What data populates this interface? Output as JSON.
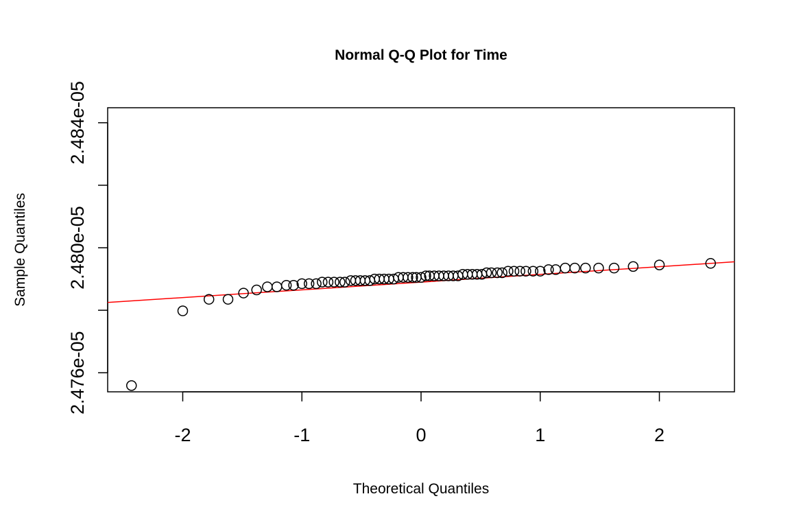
{
  "chart_data": {
    "type": "scatter",
    "title": "Normal Q-Q Plot for Time",
    "xlabel": "Theoretical Quantiles",
    "ylabel": "Sample Quantiles",
    "xlim": [
      -2.63,
      2.63
    ],
    "ylim": [
      2.47539e-05,
      2.48448e-05
    ],
    "x_ticks": [
      -2,
      -1,
      0,
      1,
      2
    ],
    "x_tick_labels": [
      "-2",
      "-1",
      "0",
      "1",
      "2"
    ],
    "y_ticks": [
      2.476e-05,
      2.478e-05,
      2.48e-05,
      2.482e-05,
      2.484e-05
    ],
    "y_tick_labels": [
      "2.476e-05",
      "",
      "2.480e-05",
      "",
      "2.484e-05"
    ],
    "grid": false,
    "legend": "none",
    "series": [
      {
        "marker": "open-circle",
        "color": "#000000",
        "x": [
          -2.43,
          -2.0,
          -1.78,
          -1.62,
          -1.49,
          -1.38,
          -1.29,
          -1.21,
          -1.13,
          -1.07,
          -1.0,
          -0.94,
          -0.88,
          -0.83,
          -0.78,
          -0.73,
          -0.68,
          -0.64,
          -0.59,
          -0.55,
          -0.51,
          -0.47,
          -0.43,
          -0.39,
          -0.35,
          -0.31,
          -0.27,
          -0.23,
          -0.19,
          -0.15,
          -0.11,
          -0.07,
          -0.04,
          0.0,
          0.04,
          0.07,
          0.11,
          0.15,
          0.19,
          0.23,
          0.27,
          0.31,
          0.35,
          0.39,
          0.43,
          0.47,
          0.51,
          0.55,
          0.59,
          0.64,
          0.68,
          0.73,
          0.78,
          0.83,
          0.88,
          0.94,
          1.0,
          1.07,
          1.13,
          1.21,
          1.29,
          1.38,
          1.49,
          1.62,
          1.78,
          2.0,
          2.43
        ],
        "y": [
          2.47559e-05,
          2.47798e-05,
          2.47835e-05,
          2.47835e-05,
          2.47855e-05,
          2.47865e-05,
          2.47875e-05,
          2.47875e-05,
          2.4788e-05,
          2.4788e-05,
          2.47885e-05,
          2.47885e-05,
          2.47885e-05,
          2.4789e-05,
          2.4789e-05,
          2.4789e-05,
          2.4789e-05,
          2.4789e-05,
          2.47895e-05,
          2.47895e-05,
          2.47895e-05,
          2.47895e-05,
          2.47895e-05,
          2.479e-05,
          2.479e-05,
          2.479e-05,
          2.479e-05,
          2.479e-05,
          2.47905e-05,
          2.47905e-05,
          2.47905e-05,
          2.47905e-05,
          2.47905e-05,
          2.47905e-05,
          2.4791e-05,
          2.4791e-05,
          2.4791e-05,
          2.4791e-05,
          2.4791e-05,
          2.4791e-05,
          2.4791e-05,
          2.4791e-05,
          2.47915e-05,
          2.47915e-05,
          2.47915e-05,
          2.47915e-05,
          2.47915e-05,
          2.4792e-05,
          2.4792e-05,
          2.4792e-05,
          2.4792e-05,
          2.47925e-05,
          2.47925e-05,
          2.47925e-05,
          2.47925e-05,
          2.47925e-05,
          2.47925e-05,
          2.4793e-05,
          2.4793e-05,
          2.47935e-05,
          2.47935e-05,
          2.47935e-05,
          2.47935e-05,
          2.47935e-05,
          2.4794e-05,
          2.47945e-05,
          2.4795e-05
        ]
      }
    ],
    "reference_line": {
      "color": "#ff0000",
      "points": [
        [
          -2.63,
          2.47825e-05
        ],
        [
          2.63,
          2.47955e-05
        ]
      ]
    }
  }
}
